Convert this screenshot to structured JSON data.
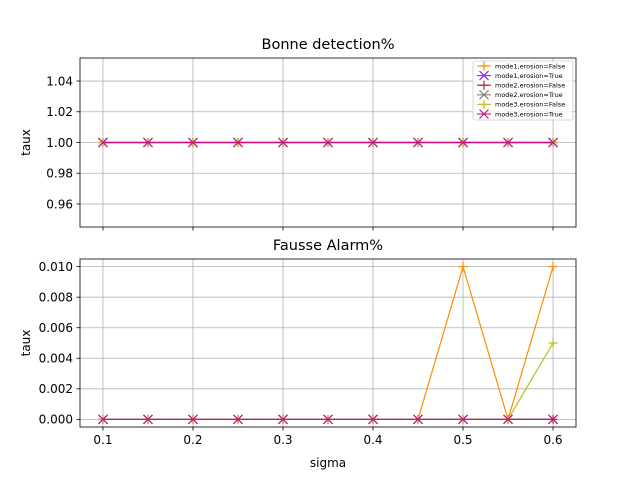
{
  "chart_data": [
    {
      "type": "line",
      "title": "Bonne detection%",
      "xlabel": "",
      "ylabel": "taux",
      "x": [
        0.1,
        0.15,
        0.2,
        0.25,
        0.3,
        0.35,
        0.4,
        0.45,
        0.5,
        0.55,
        0.6
      ],
      "xticks": [
        0.1,
        0.2,
        0.3,
        0.4,
        0.5,
        0.6
      ],
      "xticklabels": [
        "",
        "",
        "",
        "",
        "",
        ""
      ],
      "xlim": [
        0.0745,
        0.6255
      ],
      "ylim": [
        0.945,
        1.055
      ],
      "yticks": [
        0.96,
        0.98,
        1.0,
        1.02,
        1.04
      ],
      "yticklabels": [
        "0.96",
        "0.98",
        "1.00",
        "1.02",
        "1.04"
      ],
      "grid": true,
      "legend": "top-right",
      "series": [
        {
          "name": "mode1,erosion=False",
          "color": "#ff8c00",
          "marker": "+",
          "values": [
            1,
            1,
            1,
            1,
            1,
            1,
            1,
            1,
            1,
            1,
            1
          ]
        },
        {
          "name": "mode1,erosion=True",
          "color": "#8a2be2",
          "marker": "x",
          "values": [
            1,
            1,
            1,
            1,
            1,
            1,
            1,
            1,
            1,
            1,
            1
          ]
        },
        {
          "name": "mode2,erosion=False",
          "color": "#a52a2a",
          "marker": "+",
          "values": [
            1,
            1,
            1,
            1,
            1,
            1,
            1,
            1,
            1,
            1,
            1
          ]
        },
        {
          "name": "mode2,erosion=True",
          "color": "#808080",
          "marker": "x",
          "values": [
            1,
            1,
            1,
            1,
            1,
            1,
            1,
            1,
            1,
            1,
            1
          ]
        },
        {
          "name": "mode3,erosion=False",
          "color": "#bcbd22",
          "marker": "+",
          "values": [
            1,
            1,
            1,
            1,
            1,
            1,
            1,
            1,
            1,
            1,
            1
          ]
        },
        {
          "name": "mode3,erosion=True",
          "color": "#c71585",
          "marker": "x",
          "values": [
            1,
            1,
            1,
            1,
            1,
            1,
            1,
            1,
            1,
            1,
            1
          ]
        }
      ]
    },
    {
      "type": "line",
      "title": "Fausse Alarm%",
      "xlabel": "sigma",
      "ylabel": "taux",
      "x": [
        0.1,
        0.15,
        0.2,
        0.25,
        0.3,
        0.35,
        0.4,
        0.45,
        0.5,
        0.55,
        0.6
      ],
      "xticks": [
        0.1,
        0.2,
        0.3,
        0.4,
        0.5,
        0.6
      ],
      "xticklabels": [
        "0.1",
        "0.2",
        "0.3",
        "0.4",
        "0.5",
        "0.6"
      ],
      "xlim": [
        0.0745,
        0.6255
      ],
      "ylim": [
        -0.0005,
        0.0105
      ],
      "yticks": [
        0.0,
        0.002,
        0.004,
        0.006,
        0.008,
        0.01
      ],
      "yticklabels": [
        "0.000",
        "0.002",
        "0.004",
        "0.006",
        "0.008",
        "0.010"
      ],
      "grid": true,
      "series": [
        {
          "name": "mode1,erosion=False",
          "color": "#ff8c00",
          "marker": "+",
          "values": [
            0,
            0,
            0,
            0,
            0,
            0,
            0,
            0,
            0.01,
            0,
            0.01
          ]
        },
        {
          "name": "mode1,erosion=True",
          "color": "#8a2be2",
          "marker": "x",
          "values": [
            0,
            0,
            0,
            0,
            0,
            0,
            0,
            0,
            0,
            0,
            0
          ]
        },
        {
          "name": "mode2,erosion=False",
          "color": "#a52a2a",
          "marker": "+",
          "values": [
            0,
            0,
            0,
            0,
            0,
            0,
            0,
            0,
            0,
            0,
            0
          ]
        },
        {
          "name": "mode2,erosion=True",
          "color": "#808080",
          "marker": "x",
          "values": [
            0,
            0,
            0,
            0,
            0,
            0,
            0,
            0,
            0,
            0,
            0
          ]
        },
        {
          "name": "mode3,erosion=False",
          "color": "#bcbd22",
          "marker": "+",
          "values": [
            0,
            0,
            0,
            0,
            0,
            0,
            0,
            0,
            0,
            0,
            0.005
          ]
        },
        {
          "name": "mode3,erosion=True",
          "color": "#c71585",
          "marker": "x",
          "values": [
            0,
            0,
            0,
            0,
            0,
            0,
            0,
            0,
            0,
            0,
            0
          ]
        }
      ]
    }
  ]
}
